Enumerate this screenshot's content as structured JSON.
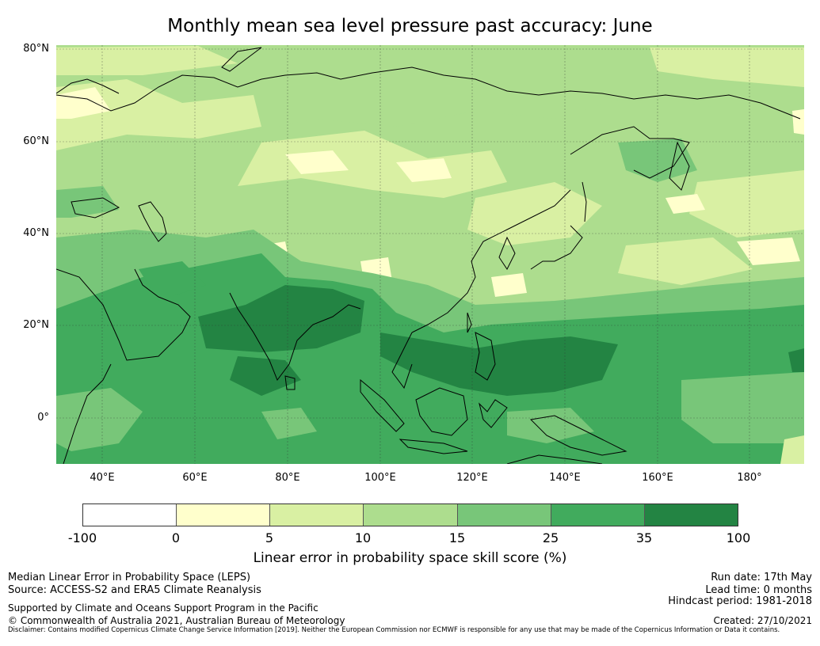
{
  "title": "Monthly mean sea level pressure past accuracy: June",
  "map": {
    "lat_labels": [
      "80°N",
      "60°N",
      "40°N",
      "20°N",
      "0°"
    ],
    "lon_labels": [
      "40°E",
      "60°E",
      "80°E",
      "100°E",
      "120°E",
      "140°E",
      "160°E",
      "180°"
    ],
    "extent": {
      "lon_min": 30,
      "lon_max": 192,
      "lat_min": -10,
      "lat_max": 81
    },
    "projection": "plate carree",
    "gridlines": true
  },
  "colorbar": {
    "label": "Linear error in probability space skill score (%)",
    "ticks": [
      "-100",
      "0",
      "5",
      "10",
      "15",
      "25",
      "35",
      "100"
    ],
    "colors": [
      "#ffffff",
      "#ffffcc",
      "#d9f0a3",
      "#addd8e",
      "#78c679",
      "#41ab5d",
      "#238443"
    ]
  },
  "footer": {
    "left_line1": "Median Linear Error in Probability Space (LEPS)",
    "left_line2": "Source: ACCESS-S2 and ERA5 Climate Reanalysis",
    "left_line3": "Supported by Climate and Oceans Support Program in the Pacific",
    "left_line4": "© Commonwealth of Australia 2021, Australian Bureau of Meteorology",
    "right_line1": "Run date: 17th May",
    "right_line2": "Lead time: 0 months",
    "right_line3": "Hindcast period: 1981-2018",
    "right_line4": "Created: 27/10/2021",
    "disclaimer": "Disclaimer: Contains modified Copernicus Climate Change Service Information [2019]. Neither the European Commission nor ECMWF is responsible for any use that may be made of the Copernicus Information or Data it contains."
  }
}
